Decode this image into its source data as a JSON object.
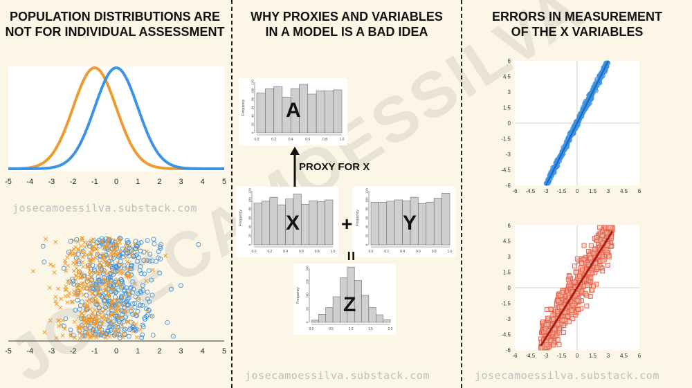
{
  "panels": {
    "left_title": [
      "POPULATION DISTRIBUTIONS ARE",
      "NOT FOR INDIVIDUAL ASSESSMENT"
    ],
    "middle_title": [
      "WHY PROXIES AND VARIABLES",
      "IN A MODEL IS A BAD IDEA"
    ],
    "right_title": [
      "ERRORS IN MEASUREMENT",
      "OF THE X VARIABLES"
    ]
  },
  "credits": {
    "left": "josecamoessilva.substack.com",
    "middle": "josecamoessilva.substack.com",
    "right": "josecamoessilva.substack.com"
  },
  "watermark_text": "JOSECAMOESSILVA",
  "colors": {
    "orange": "#ee9a2e",
    "blue": "#3b93e6",
    "red": "#e8634c",
    "dark_red": "#a51f12",
    "dark_blue": "#1f63b3",
    "hist_bar": "#cfcfcf"
  },
  "middle_diagram": {
    "proxy_label": "PROXY FOR X",
    "plus": "+",
    "equals": "=",
    "frequency_label": "Frequency"
  },
  "chart_data": [
    {
      "type": "line",
      "id": "density_curves",
      "x_ticks": [
        -5,
        -4,
        -3,
        -2,
        -1,
        0,
        1,
        2,
        3,
        4,
        5
      ],
      "xlim": [
        -5,
        5
      ],
      "series": [
        {
          "color": "#ee9a2e",
          "mean": -1,
          "sd": 1
        },
        {
          "color": "#3b93e6",
          "mean": 0,
          "sd": 1
        }
      ]
    },
    {
      "type": "scatter",
      "id": "strip_plot",
      "x_ticks": [
        -5,
        -4,
        -3,
        -2,
        -1,
        0,
        1,
        2,
        3,
        4,
        5
      ],
      "xlim": [
        -5,
        5
      ],
      "series": [
        {
          "marker": "x",
          "color": "#ee9a2e",
          "mean": -1,
          "sd": 1
        },
        {
          "marker": "circle",
          "color": "#3b93e6",
          "mean": 0,
          "sd": 1
        }
      ]
    },
    {
      "type": "bar",
      "id": "hist_A",
      "label": "A",
      "x_ticks": [
        "0.0",
        "0.2",
        "0.4",
        "0.6",
        "0.8",
        "1.0"
      ],
      "y_ticks": [
        "0",
        "20",
        "40",
        "60",
        "80",
        "100",
        "120"
      ],
      "values": [
        95,
        105,
        110,
        85,
        105,
        115,
        92,
        100,
        100,
        102
      ]
    },
    {
      "type": "bar",
      "id": "hist_X",
      "label": "X",
      "x_ticks": [
        "0.0",
        "0.2",
        "0.4",
        "0.6",
        "0.8",
        "1.0"
      ],
      "y_ticks": [
        "0",
        "20",
        "40",
        "60",
        "80",
        "100",
        "120"
      ],
      "values": [
        93,
        97,
        106,
        89,
        102,
        113,
        90,
        98,
        96,
        100
      ]
    },
    {
      "type": "bar",
      "id": "hist_Y",
      "label": "Y",
      "x_ticks": [
        "0.0",
        "0.2",
        "0.4",
        "0.6",
        "0.8",
        "1.0"
      ],
      "y_ticks": [
        "0",
        "20",
        "40",
        "60",
        "80",
        "100",
        "120"
      ],
      "values": [
        95,
        95,
        97,
        100,
        98,
        106,
        92,
        95,
        104,
        115
      ]
    },
    {
      "type": "bar",
      "id": "hist_Z",
      "label": "Z",
      "x_ticks": [
        "0.0",
        "0.5",
        "1.0",
        "1.5",
        "2.0"
      ],
      "y_ticks": [
        "0",
        "50",
        "100",
        "150",
        "200"
      ],
      "values": [
        8,
        30,
        55,
        95,
        165,
        205,
        155,
        100,
        55,
        28,
        10
      ]
    },
    {
      "type": "scatter",
      "id": "scatter_blue",
      "xlim": [
        -6,
        6
      ],
      "ylim": [
        -6,
        6
      ],
      "x_ticks": [
        "-6",
        "-4.5",
        "-3",
        "-1.5",
        "0",
        "1.5",
        "3",
        "4.5",
        "6"
      ],
      "y_ticks": [
        "6",
        "4.5",
        "3",
        "1.5",
        "0",
        "-1.5",
        "-3",
        "-4.5",
        "-6"
      ],
      "x_range": [
        -3,
        3
      ],
      "slope": 2,
      "noise": 0.2,
      "point_color": "#3b93e6",
      "line_color": "#1f63b3"
    },
    {
      "type": "scatter",
      "id": "scatter_red",
      "xlim": [
        -6,
        6
      ],
      "ylim": [
        -6,
        6
      ],
      "x_ticks": [
        "-6",
        "-4.5",
        "-3",
        "-1.5",
        "0",
        "1.5",
        "3",
        "4.5",
        "6"
      ],
      "y_ticks": [
        "6",
        "4.5",
        "3",
        "1.5",
        "0",
        "-1.5",
        "-3",
        "-4.5",
        "-6"
      ],
      "x_range": [
        -3.5,
        3.4
      ],
      "slope": 1.6,
      "noise": 1.1,
      "point_color": "#e8634c",
      "line_color": "#a51f12"
    }
  ]
}
